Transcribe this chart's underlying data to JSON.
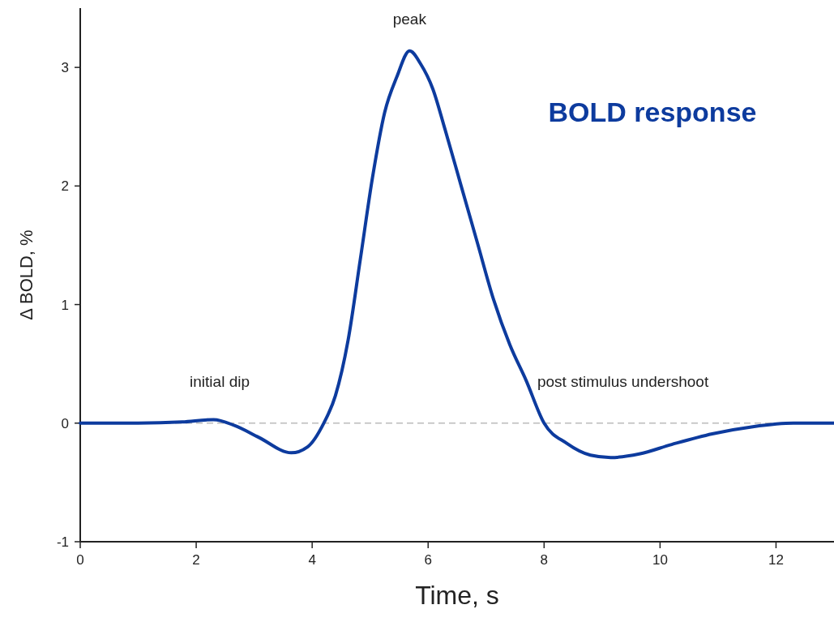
{
  "chart_data": {
    "type": "line",
    "title": "BOLD response",
    "xlabel": "Time, s",
    "ylabel": "Δ BOLD, %",
    "xlim": [
      0,
      13
    ],
    "ylim": [
      -1,
      3.5
    ],
    "xticks": [
      0,
      2,
      4,
      6,
      8,
      10,
      12
    ],
    "yticks": [
      -1,
      0,
      1,
      2,
      3
    ],
    "marker": "none",
    "line_style": "solid",
    "grid": false,
    "series": [
      {
        "color": "#0d3b9e",
        "x": [
          0,
          1,
          1.76,
          2.3,
          2.66,
          3.08,
          3.64,
          3.92,
          4.2,
          4.4,
          4.62,
          4.83,
          5.04,
          5.25,
          5.46,
          5.68,
          5.87,
          6.08,
          6.29,
          6.57,
          6.85,
          7.13,
          7.41,
          7.69,
          8,
          8.39,
          8.8,
          9.15,
          9.64,
          10.2,
          10.9,
          11.6,
          12.3,
          13
        ],
        "values": [
          0,
          0,
          0.01,
          0.03,
          -0.02,
          -0.12,
          -0.25,
          -0.2,
          0,
          0.23,
          0.7,
          1.38,
          2.07,
          2.62,
          2.92,
          3.14,
          3.03,
          2.82,
          2.48,
          2,
          1.52,
          1.04,
          0.66,
          0.36,
          0,
          -0.17,
          -0.27,
          -0.29,
          -0.26,
          -0.18,
          -0.09,
          -0.03,
          0,
          0
        ]
      }
    ],
    "ref_lines": [
      {
        "axis": "y",
        "value": 0,
        "color": "#bbbbbb",
        "line_style": "dashed"
      }
    ],
    "annotations": [
      {
        "text": "peak",
        "x": 5.68,
        "y": 3.14
      },
      "initial dip",
      "post stimulus undershoot"
    ]
  }
}
